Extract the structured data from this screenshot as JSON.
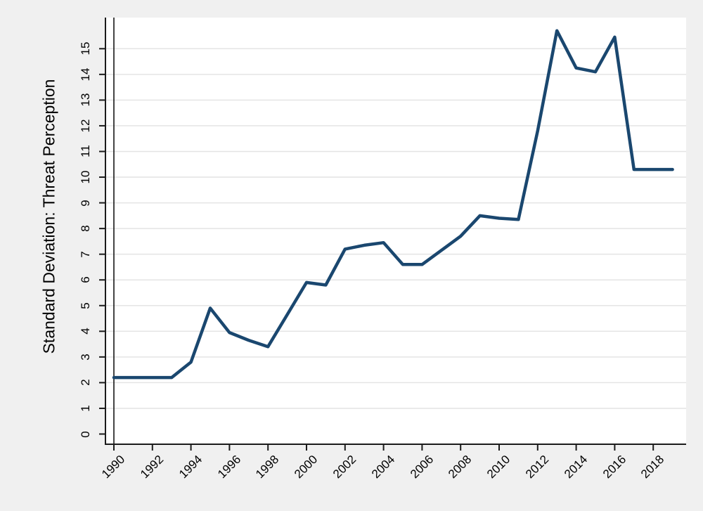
{
  "figure": {
    "colors": {
      "background": "#f0f0f0",
      "plot_background": "#ffffff",
      "grid": "#e4e4e4",
      "axis": "#1b1b1b",
      "line": "#1a476f",
      "reference_line": "#151515",
      "text": "#000000"
    }
  },
  "chart_data": {
    "type": "line",
    "title": "",
    "xlabel": "",
    "ylabel": "Standard Deviation: Threat Perception",
    "x": [
      1990,
      1991,
      1992,
      1993,
      1994,
      1995,
      1996,
      1997,
      1998,
      1999,
      2000,
      2001,
      2002,
      2003,
      2004,
      2005,
      2006,
      2007,
      2008,
      2009,
      2010,
      2011,
      2012,
      2013,
      2014,
      2015,
      2016,
      2017,
      2018,
      2019
    ],
    "values": [
      2.2,
      2.2,
      2.2,
      2.2,
      2.8,
      4.9,
      3.95,
      3.65,
      3.4,
      4.65,
      5.9,
      5.8,
      7.2,
      7.35,
      7.45,
      6.6,
      6.6,
      7.15,
      7.7,
      8.5,
      8.4,
      8.35,
      11.8,
      15.7,
      14.25,
      14.1,
      15.45,
      10.3,
      10.3,
      10.3
    ],
    "yticks": [
      0,
      1,
      2,
      3,
      4,
      5,
      6,
      7,
      8,
      9,
      10,
      11,
      12,
      13,
      14,
      15
    ],
    "xticks": [
      1990,
      1992,
      1994,
      1996,
      1998,
      2000,
      2002,
      2004,
      2006,
      2008,
      2010,
      2012,
      2014,
      2016,
      2018
    ],
    "ylim": [
      0,
      15
    ],
    "xlim": [
      1990,
      2019
    ],
    "grid": "horizontal",
    "legend": "none",
    "reference_line_x": 1990,
    "x_tick_label_angle": 45,
    "y_tick_label_angle": 90
  }
}
